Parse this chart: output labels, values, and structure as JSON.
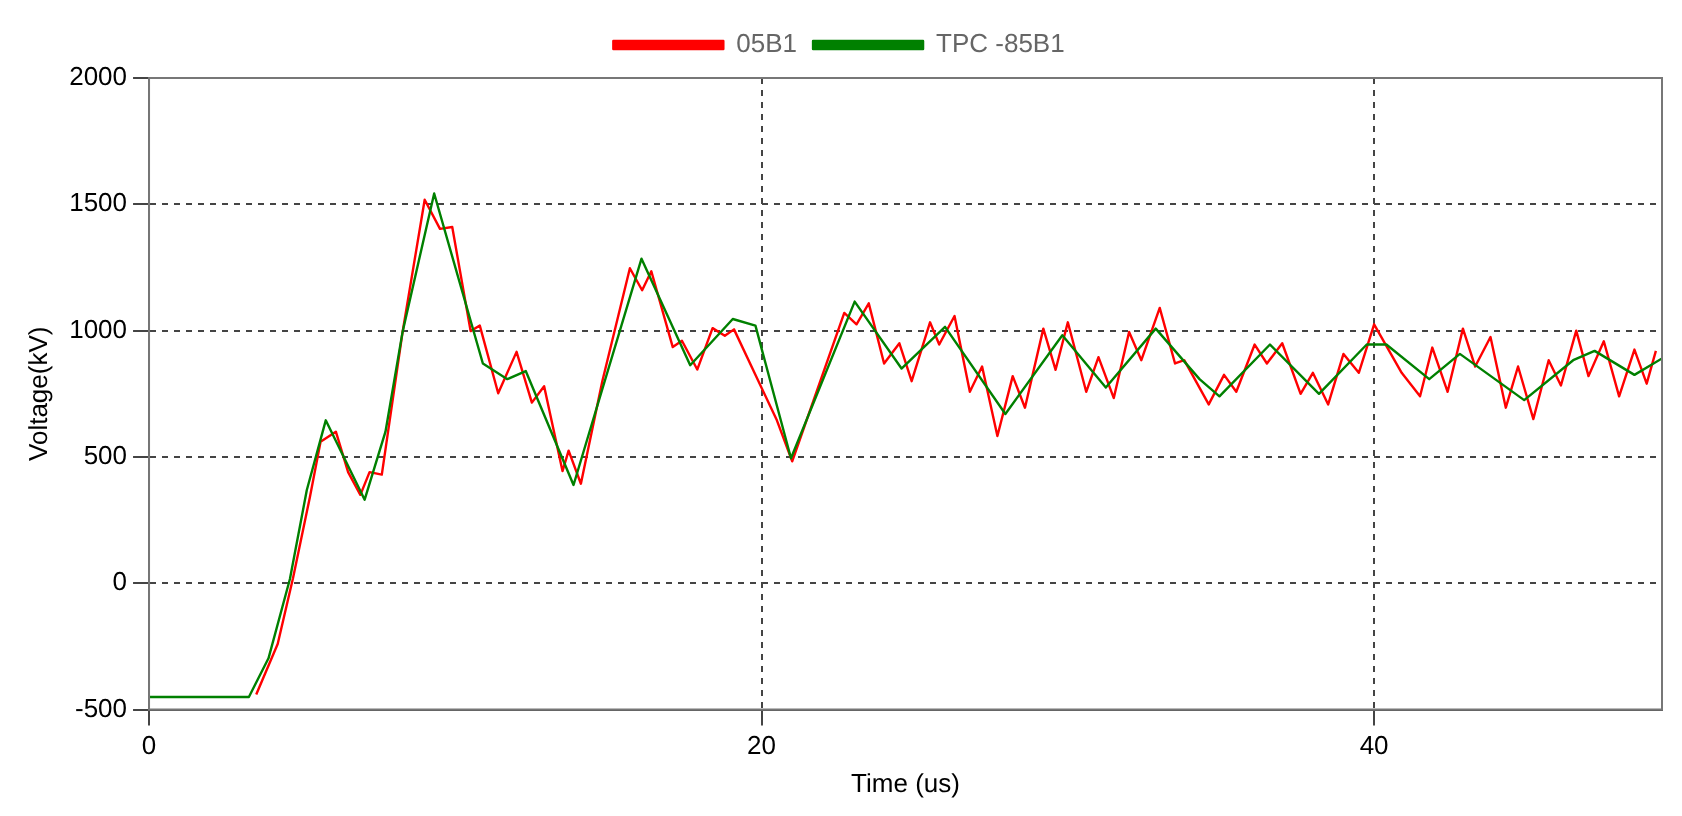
{
  "chart_data": {
    "type": "line",
    "xlabel": "Time (us)",
    "ylabel": "Voltage(kV)",
    "xlim": [
      0,
      49.4
    ],
    "xticks": [
      0,
      20,
      40
    ],
    "ylim": [
      -500,
      2000
    ],
    "yticks": [
      -500,
      0,
      500,
      1000,
      1500,
      2000
    ],
    "grid": true,
    "legend": "top",
    "marker": "none",
    "line_style": "solid",
    "series": [
      {
        "name": "05B1",
        "color": "#ff0000",
        "x": [
          3.5,
          4.2,
          4.7,
          5.25,
          5.6,
          6.1,
          6.5,
          6.9,
          7.2,
          7.6,
          8.28,
          9.0,
          9.5,
          9.9,
          10.5,
          10.8,
          11.4,
          12.0,
          12.5,
          12.9,
          13.5,
          13.7,
          14.1,
          14.8,
          15.7,
          16.1,
          16.4,
          17.1,
          17.4,
          17.9,
          18.4,
          18.8,
          19.1,
          20.5,
          21.0,
          22.7,
          23.1,
          23.5,
          24.0,
          24.5,
          24.9,
          25.5,
          25.8,
          26.3,
          26.8,
          27.2,
          27.7,
          28.2,
          28.6,
          29.2,
          29.6,
          30.0,
          30.6,
          31.0,
          31.5,
          32.0,
          32.4,
          33.0,
          33.5,
          33.8,
          34.6,
          35.1,
          35.5,
          36.1,
          36.5,
          37.0,
          37.6,
          38.0,
          38.5,
          39.0,
          39.5,
          40.0,
          40.9,
          41.5,
          41.9,
          42.4,
          42.9,
          43.3,
          43.8,
          44.3,
          44.7,
          45.2,
          45.7,
          46.1,
          46.6,
          47.0,
          47.5,
          48.0,
          48.5,
          48.9,
          49.2
        ],
        "values": [
          -440,
          -240,
          20,
          340,
          560,
          600,
          440,
          350,
          440,
          430,
          996,
          1518,
          1403,
          1410,
          998,
          1020,
          752,
          916,
          715,
          780,
          444,
          525,
          394,
          800,
          1247,
          1160,
          1235,
          935,
          960,
          846,
          1010,
          980,
          1005,
          645,
          483,
          1070,
          1025,
          1108,
          870,
          950,
          800,
          1033,
          945,
          1058,
          758,
          858,
          583,
          820,
          695,
          1008,
          845,
          1033,
          758,
          895,
          733,
          995,
          883,
          1090,
          870,
          883,
          708,
          825,
          758,
          945,
          870,
          950,
          750,
          833,
          708,
          908,
          833,
          1025,
          833,
          740,
          933,
          758,
          1008,
          858,
          975,
          695,
          858,
          650,
          883,
          783,
          1000,
          820,
          958,
          740,
          925,
          790,
          920
        ]
      },
      {
        "name": "TPC -85B1",
        "color": "#008000",
        "x": [
          0,
          3.26,
          3.9,
          4.6,
          5.15,
          5.77,
          7.04,
          7.72,
          8.28,
          9.31,
          10.9,
          11.7,
          12.3,
          13.86,
          16.08,
          17.67,
          19.06,
          19.8,
          20.96,
          23.04,
          24.57,
          25.99,
          27.96,
          29.82,
          31.24,
          32.87,
          34.3,
          34.95,
          36.6,
          38.2,
          39.76,
          40.4,
          41.8,
          42.8,
          44.9,
          46.5,
          47.2,
          48.5,
          49.4
        ],
        "values": [
          -450,
          -450,
          -297,
          17,
          368,
          645,
          331,
          600,
          996,
          1543,
          870,
          808,
          840,
          389,
          1285,
          863,
          1046,
          1020,
          495,
          1115,
          850,
          1015,
          670,
          982,
          775,
          1008,
          808,
          740,
          945,
          750,
          945,
          945,
          808,
          908,
          725,
          883,
          920,
          825,
          890
        ]
      }
    ]
  }
}
